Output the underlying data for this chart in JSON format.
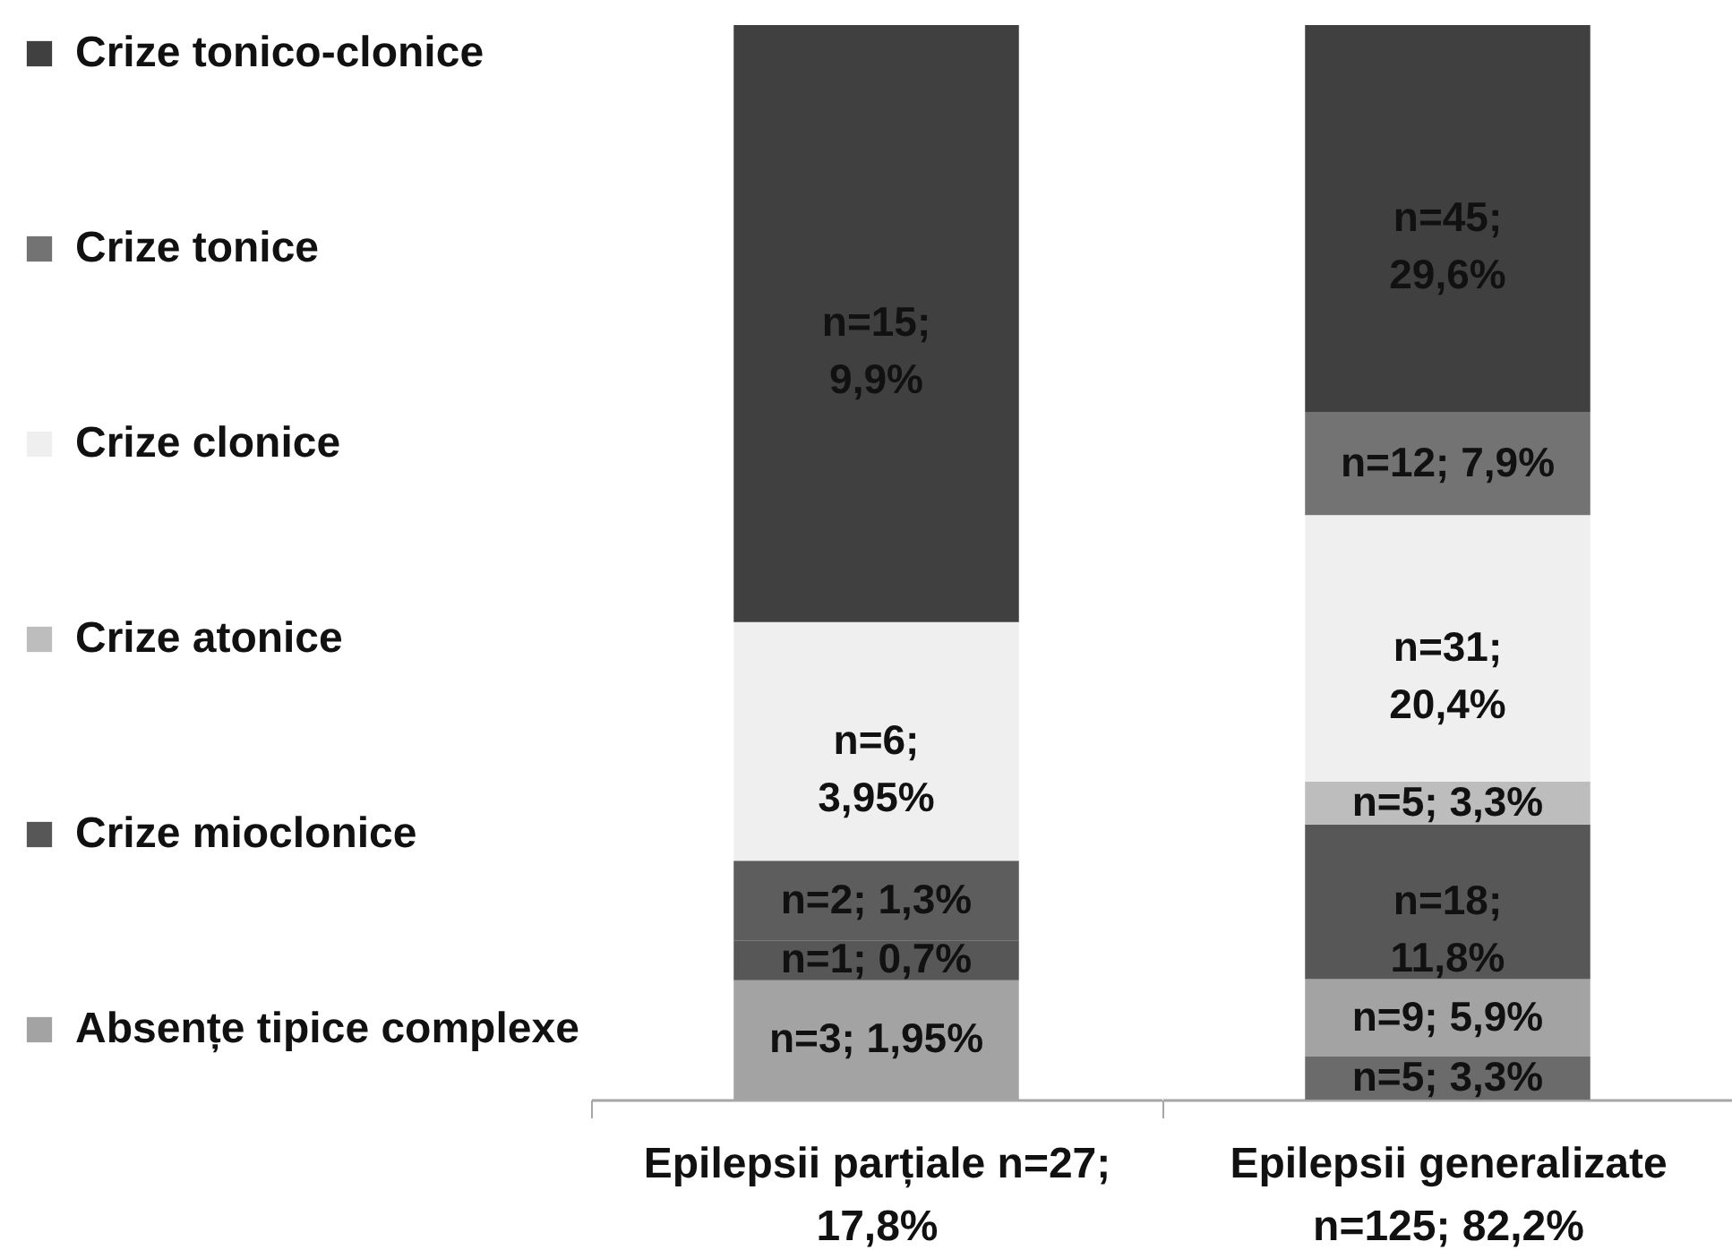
{
  "chart_data": [
    {
      "type": "bar",
      "stacked": true,
      "legend": "left",
      "categories": [
        "Epilepsii parțiale n=27; 17,8%"
      ],
      "series": [
        {
          "name": "Absențe tipice complexe",
          "color": "#a3a3a3",
          "values": [
            3
          ],
          "value_labels": [
            "n=3; 1,95%"
          ]
        },
        {
          "name": "Crize mioclonice",
          "color": "#575757",
          "values": [
            1
          ],
          "value_labels": [
            "n=1; 0,7%"
          ]
        },
        {
          "color": "#5d5d5d",
          "values": [
            2
          ],
          "value_labels": [
            "n=2; 1,3%"
          ]
        },
        {
          "name": "Crize clonice",
          "color": "#efefef",
          "values": [
            6
          ],
          "value_labels": [
            "n=6; 3,95%"
          ]
        },
        {
          "name": "Crize tonico-clonice",
          "color": "#404040",
          "values": [
            15
          ],
          "value_labels": [
            "n=15; 9,9%"
          ]
        }
      ]
    },
    {
      "type": "bar",
      "stacked": true,
      "legend": "left",
      "categories": [
        "Epilepsii generalizate n=125; 82,2%"
      ],
      "series": [
        {
          "color": "#6b6b6b",
          "values": [
            5
          ],
          "value_labels": [
            "n=5; 3,3%"
          ]
        },
        {
          "name": "Absențe tipice complexe",
          "color": "#a3a3a3",
          "values": [
            9
          ],
          "value_labels": [
            "n=9; 5,9%"
          ]
        },
        {
          "name": "Crize mioclonice",
          "color": "#575757",
          "values": [
            18
          ],
          "value_labels": [
            "n=18; 11,8%"
          ]
        },
        {
          "name": "Crize atonice",
          "color": "#bdbdbd",
          "values": [
            5
          ],
          "value_labels": [
            "n=5; 3,3%"
          ]
        },
        {
          "name": "Crize clonice",
          "color": "#efefef",
          "values": [
            31
          ],
          "value_labels": [
            "n=31; 20,4%"
          ]
        },
        {
          "name": "Crize tonice",
          "color": "#737373",
          "values": [
            12
          ],
          "value_labels": [
            "n=12; 7,9%"
          ]
        },
        {
          "name": "Crize tonico-clonice",
          "color": "#404040",
          "values": [
            45
          ],
          "value_labels": [
            "n=45; 29,6%"
          ]
        }
      ]
    }
  ]
}
